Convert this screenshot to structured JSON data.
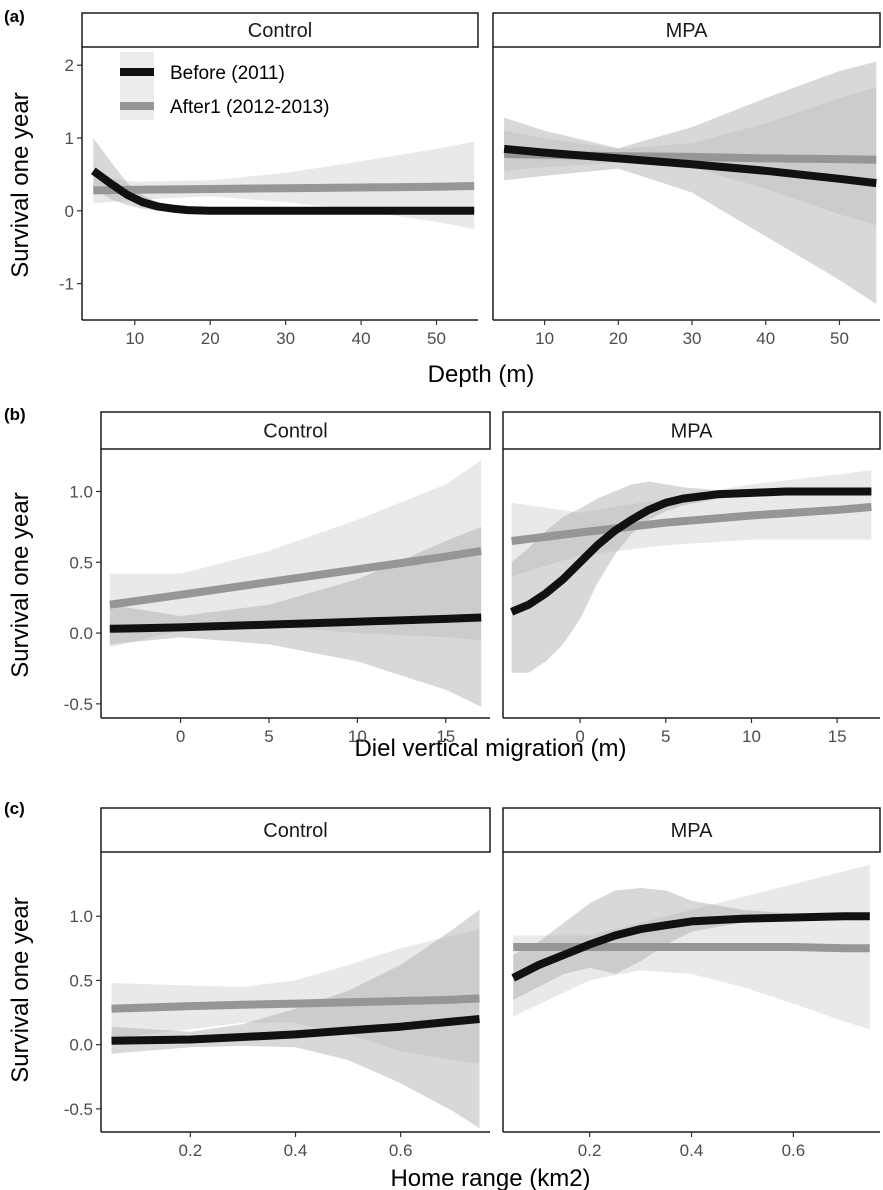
{
  "colors": {
    "before_line": "#111111",
    "after_line": "#969696",
    "before_band": "#a8a8a8",
    "after_band": "#e2e2e2"
  },
  "legend": {
    "items": [
      {
        "label": "Before (2011)",
        "color": "#111111"
      },
      {
        "label": "After1 (2012-2013)",
        "color": "#969696"
      }
    ]
  },
  "chart_data": [
    {
      "type": "line",
      "panel_label": "(a)",
      "xlabel": "Depth (m)",
      "ylabel": "Survival one year",
      "xlim": [
        3,
        55.5
      ],
      "ylim": [
        -1.5,
        2.25
      ],
      "xticks": [
        10,
        20,
        30,
        40,
        50
      ],
      "yticks": [
        -1,
        0,
        1,
        2
      ],
      "grid": false,
      "legend_position": "top-left",
      "facets": [
        {
          "name": "Control",
          "series": [
            {
              "name": "Before (2011)",
              "x": [
                4.5,
                7,
                9,
                11,
                13,
                15,
                17,
                20,
                25,
                30,
                40,
                50,
                55
              ],
              "y": [
                0.55,
                0.36,
                0.22,
                0.12,
                0.06,
                0.03,
                0.01,
                0,
                0,
                0,
                0,
                0,
                0
              ],
              "lower": [
                0.3,
                0.15,
                0.08,
                0.03,
                0.0,
                -0.02,
                -0.02,
                -0.02,
                -0.02,
                -0.02,
                -0.02,
                -0.02,
                -0.02
              ],
              "upper": [
                1.0,
                0.65,
                0.38,
                0.22,
                0.12,
                0.06,
                0.03,
                0.02,
                0.02,
                0.02,
                0.02,
                0.02,
                0.02
              ]
            },
            {
              "name": "After1 (2012-2013)",
              "x": [
                4.5,
                10,
                20,
                30,
                40,
                50,
                55
              ],
              "y": [
                0.28,
                0.29,
                0.3,
                0.31,
                0.32,
                0.33,
                0.34
              ],
              "lower": [
                0.1,
                0.15,
                0.2,
                0.12,
                0.0,
                -0.15,
                -0.25
              ],
              "upper": [
                0.47,
                0.4,
                0.42,
                0.52,
                0.68,
                0.85,
                0.95
              ]
            }
          ]
        },
        {
          "name": "MPA",
          "series": [
            {
              "name": "Before (2011)",
              "x": [
                4.5,
                10,
                20,
                30,
                40,
                50,
                55
              ],
              "y": [
                0.85,
                0.8,
                0.72,
                0.64,
                0.55,
                0.44,
                0.38
              ],
              "lower": [
                0.42,
                0.48,
                0.58,
                0.25,
                -0.35,
                -0.95,
                -1.28
              ],
              "upper": [
                1.28,
                1.1,
                0.86,
                1.15,
                1.55,
                1.92,
                2.05
              ]
            },
            {
              "name": "After1 (2012-2013)",
              "x": [
                4.5,
                10,
                20,
                30,
                40,
                50,
                55
              ],
              "y": [
                0.78,
                0.77,
                0.75,
                0.74,
                0.72,
                0.71,
                0.7
              ],
              "lower": [
                0.55,
                0.6,
                0.66,
                0.6,
                0.3,
                -0.05,
                -0.2
              ],
              "upper": [
                1.1,
                1.0,
                0.85,
                0.93,
                1.2,
                1.55,
                1.7
              ]
            }
          ]
        }
      ]
    },
    {
      "type": "line",
      "panel_label": "(b)",
      "xlabel": "Diel vertical migration (m)",
      "ylabel": "Survival one year",
      "xlim": [
        -4.5,
        17.5
      ],
      "ylim": [
        -0.6,
        1.3
      ],
      "xticks": [
        0,
        5,
        10,
        15
      ],
      "yticks": [
        -0.5,
        0.0,
        0.5,
        1.0
      ],
      "grid": false,
      "facets": [
        {
          "name": "Control",
          "series": [
            {
              "name": "Before (2011)",
              "x": [
                -4,
                0,
                5,
                10,
                15,
                17
              ],
              "y": [
                0.03,
                0.04,
                0.06,
                0.08,
                0.1,
                0.11
              ],
              "lower": [
                -0.08,
                -0.03,
                -0.08,
                -0.2,
                -0.4,
                -0.52
              ],
              "upper": [
                0.2,
                0.12,
                0.2,
                0.38,
                0.65,
                0.75
              ]
            },
            {
              "name": "After1 (2012-2013)",
              "x": [
                -4,
                0,
                5,
                10,
                15,
                17
              ],
              "y": [
                0.2,
                0.27,
                0.36,
                0.45,
                0.54,
                0.58
              ],
              "lower": [
                -0.1,
                0.02,
                0.05,
                0.0,
                -0.03,
                -0.05
              ],
              "upper": [
                0.42,
                0.42,
                0.58,
                0.8,
                1.05,
                1.22
              ]
            }
          ]
        },
        {
          "name": "MPA",
          "series": [
            {
              "name": "Before (2011)",
              "x": [
                -4,
                -3,
                -2,
                -1,
                0,
                1,
                2,
                3,
                4,
                5,
                6,
                8,
                10,
                12,
                15,
                17
              ],
              "y": [
                0.15,
                0.2,
                0.28,
                0.38,
                0.5,
                0.62,
                0.72,
                0.8,
                0.87,
                0.92,
                0.95,
                0.98,
                0.99,
                1.0,
                1.0,
                1.0
              ],
              "lower": [
                -0.28,
                -0.28,
                -0.2,
                -0.08,
                0.1,
                0.35,
                0.55,
                0.7,
                0.8,
                0.86,
                0.9,
                0.95,
                0.97,
                0.98,
                0.99,
                0.99
              ],
              "upper": [
                0.5,
                0.6,
                0.72,
                0.82,
                0.88,
                0.95,
                1.0,
                1.05,
                1.07,
                1.05,
                1.03,
                1.01,
                1.0,
                1.0,
                1.0,
                1.0
              ]
            },
            {
              "name": "After1 (2012-2013)",
              "x": [
                -4,
                0,
                5,
                10,
                15,
                17
              ],
              "y": [
                0.65,
                0.71,
                0.78,
                0.83,
                0.87,
                0.89
              ],
              "lower": [
                0.4,
                0.55,
                0.62,
                0.66,
                0.66,
                0.66
              ],
              "upper": [
                0.92,
                0.85,
                0.95,
                1.05,
                1.12,
                1.15
              ]
            }
          ]
        }
      ]
    },
    {
      "type": "line",
      "panel_label": "(c)",
      "xlabel": "Home range (km2)",
      "ylabel": "Survival one year",
      "xlim": [
        0.03,
        0.77
      ],
      "ylim": [
        -0.68,
        1.5
      ],
      "xticks": [
        0.2,
        0.4,
        0.6
      ],
      "yticks": [
        -0.5,
        0.0,
        0.5,
        1.0
      ],
      "grid": false,
      "facets": [
        {
          "name": "Control",
          "series": [
            {
              "name": "Before (2011)",
              "x": [
                0.05,
                0.2,
                0.3,
                0.4,
                0.5,
                0.6,
                0.7,
                0.75
              ],
              "y": [
                0.03,
                0.04,
                0.06,
                0.08,
                0.11,
                0.14,
                0.18,
                0.2
              ],
              "lower": [
                -0.07,
                -0.02,
                -0.01,
                -0.02,
                -0.12,
                -0.3,
                -0.52,
                -0.65
              ],
              "upper": [
                0.14,
                0.1,
                0.16,
                0.28,
                0.42,
                0.62,
                0.9,
                1.05
              ]
            },
            {
              "name": "After1 (2012-2013)",
              "x": [
                0.05,
                0.2,
                0.3,
                0.4,
                0.5,
                0.6,
                0.7,
                0.75
              ],
              "y": [
                0.28,
                0.3,
                0.31,
                0.32,
                0.33,
                0.34,
                0.35,
                0.36
              ],
              "lower": [
                0.05,
                0.12,
                0.17,
                0.17,
                0.08,
                -0.05,
                -0.12,
                -0.15
              ],
              "upper": [
                0.48,
                0.46,
                0.45,
                0.5,
                0.62,
                0.75,
                0.85,
                0.9
              ]
            }
          ]
        },
        {
          "name": "MPA",
          "series": [
            {
              "name": "Before (2011)",
              "x": [
                0.05,
                0.1,
                0.15,
                0.2,
                0.25,
                0.3,
                0.35,
                0.4,
                0.5,
                0.6,
                0.7,
                0.75
              ],
              "y": [
                0.52,
                0.62,
                0.7,
                0.78,
                0.85,
                0.9,
                0.93,
                0.96,
                0.98,
                0.99,
                1.0,
                1.0
              ],
              "lower": [
                0.35,
                0.45,
                0.55,
                0.6,
                0.55,
                0.65,
                0.78,
                0.88,
                0.95,
                0.97,
                0.98,
                0.99
              ],
              "upper": [
                0.7,
                0.8,
                0.95,
                1.1,
                1.2,
                1.22,
                1.2,
                1.12,
                1.05,
                1.02,
                1.01,
                1.0
              ]
            },
            {
              "name": "After1 (2012-2013)",
              "x": [
                0.05,
                0.2,
                0.3,
                0.4,
                0.5,
                0.6,
                0.7,
                0.75
              ],
              "y": [
                0.76,
                0.76,
                0.76,
                0.76,
                0.76,
                0.76,
                0.75,
                0.75
              ],
              "lower": [
                0.22,
                0.5,
                0.58,
                0.55,
                0.45,
                0.32,
                0.18,
                0.12
              ],
              "upper": [
                0.85,
                0.85,
                0.95,
                1.05,
                1.15,
                1.25,
                1.35,
                1.4
              ]
            }
          ]
        }
      ]
    }
  ]
}
